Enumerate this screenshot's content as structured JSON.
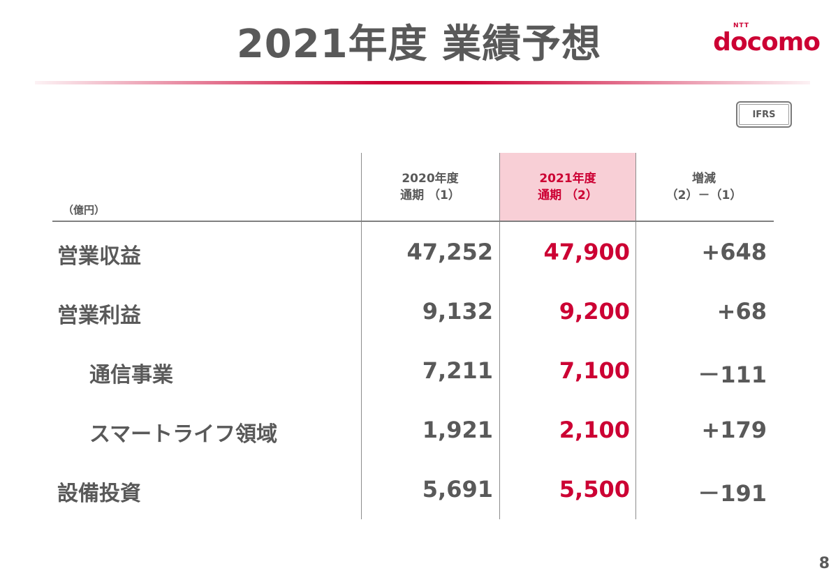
{
  "header": {
    "title": "2021年度 業績予想",
    "logo_ntt": "NTT",
    "logo_brand": "docomo"
  },
  "badge": {
    "ifrs": "IFRS"
  },
  "table": {
    "unit": "（億円）",
    "columns": [
      {
        "line1": "2020年度",
        "line2": "通期 （1）"
      },
      {
        "line1": "2021年度",
        "line2": "通期 （2）"
      },
      {
        "line1": "増減",
        "line2": "（2）－（1）"
      }
    ],
    "rows": [
      {
        "label": "営業収益",
        "v2020": "47,252",
        "v2021": "47,900",
        "diff": "+648"
      },
      {
        "label": "営業利益",
        "v2020": "9,132",
        "v2021": "9,200",
        "diff": "+68"
      },
      {
        "label": "通信事業",
        "v2020": "7,211",
        "v2021": "7,100",
        "diff": "－111"
      },
      {
        "label": "スマートライフ領域",
        "v2020": "1,921",
        "v2021": "2,100",
        "diff": "+179"
      },
      {
        "label": "設備投資",
        "v2020": "5,691",
        "v2021": "5,500",
        "diff": "－191"
      }
    ]
  },
  "footer": {
    "page_number": "8"
  },
  "colors": {
    "accent": "#cc0033",
    "text": "#595959",
    "highlight": "#f8cfd6"
  }
}
